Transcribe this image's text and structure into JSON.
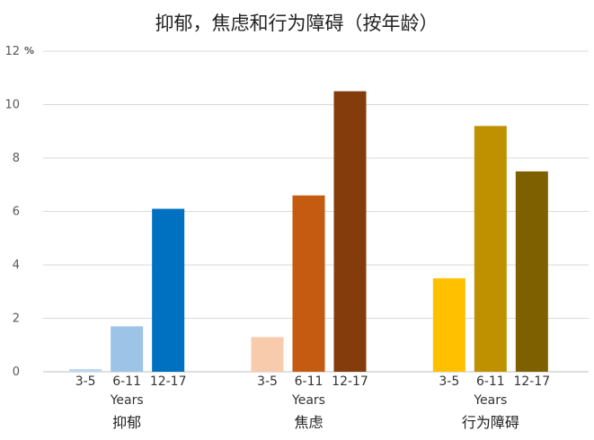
{
  "chart_data": {
    "type": "bar",
    "title": "抑郁，焦虑和行为障碍（按年龄）",
    "y_unit_label": "%",
    "ylim": [
      0,
      12
    ],
    "y_ticks": [
      "0",
      "2",
      "4",
      "6",
      "8",
      "10",
      "12"
    ],
    "x_sublabel": "Years",
    "grid": true,
    "groups": [
      {
        "name": "抑郁",
        "bars": [
          {
            "category": "3-5",
            "value": 0.1,
            "color": "#bdd7ee"
          },
          {
            "category": "6-11",
            "value": 1.7,
            "color": "#9dc3e6"
          },
          {
            "category": "12-17",
            "value": 6.1,
            "color": "#0070c0"
          }
        ]
      },
      {
        "name": "焦虑",
        "bars": [
          {
            "category": "3-5",
            "value": 1.3,
            "color": "#f8cbad"
          },
          {
            "category": "6-11",
            "value": 6.6,
            "color": "#c55a11"
          },
          {
            "category": "12-17",
            "value": 10.5,
            "color": "#843c0c"
          }
        ]
      },
      {
        "name": "行为障碍",
        "bars": [
          {
            "category": "3-5",
            "value": 3.5,
            "color": "#ffc000"
          },
          {
            "category": "6-11",
            "value": 9.2,
            "color": "#bf9000"
          },
          {
            "category": "12-17",
            "value": 7.5,
            "color": "#7f6000"
          }
        ]
      }
    ]
  }
}
